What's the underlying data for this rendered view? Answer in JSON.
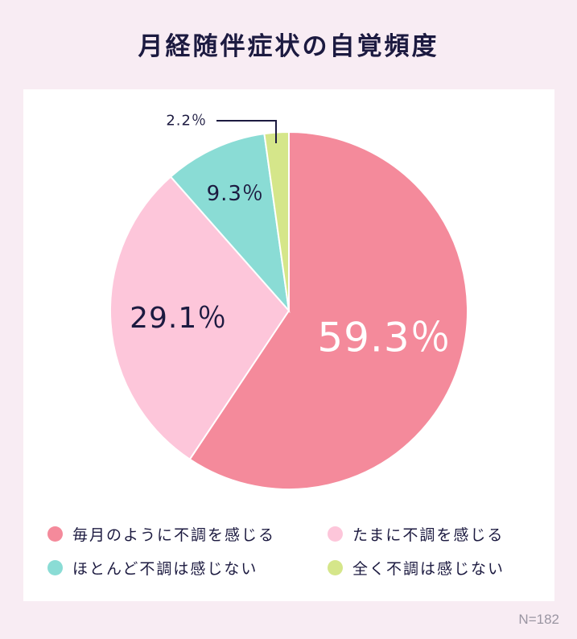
{
  "title": "月経随伴症状の自覚頻度",
  "note": "N=182",
  "chart_data": {
    "type": "pie",
    "title": "月経随伴症状の自覚頻度",
    "slices": [
      {
        "label": "毎月のように不調を感じる",
        "value": 59.3,
        "display": "59.3％",
        "color": "#f48a9b",
        "label_color": "#ffffff"
      },
      {
        "label": "たまに不調を感じる",
        "value": 29.1,
        "display": "29.1％",
        "color": "#fdc6da",
        "label_color": "#1c1a40"
      },
      {
        "label": "ほとんど不調は感じない",
        "value": 9.3,
        "display": "9.3％",
        "color": "#8adcd5",
        "label_color": "#1c1a40"
      },
      {
        "label": "全く不調は感じない",
        "value": 2.2,
        "display": "2.2％",
        "color": "#d5e68a",
        "label_color": "#1c1a40"
      }
    ],
    "legend_placement": "bottom"
  }
}
